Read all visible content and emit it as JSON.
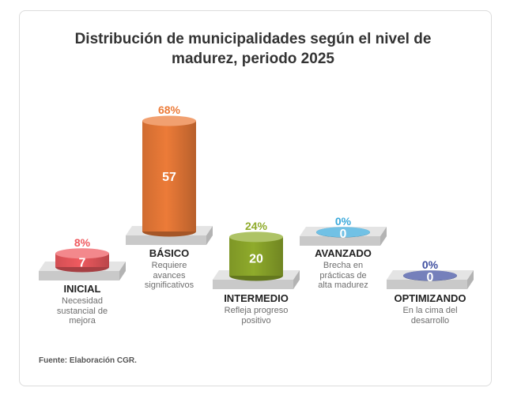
{
  "title_lines": [
    "Distribución de municipalidades según el nivel de",
    "madurez, periodo 2025"
  ],
  "source": "Fuente: Elaboración CGR.",
  "chart_data": {
    "type": "bar",
    "title": "Distribución de municipalidades según el nivel de madurez, periodo 2025",
    "categories": [
      "INICIAL",
      "BÁSICO",
      "INTERMEDIO",
      "AVANZADO",
      "OPTIMIZANDO"
    ],
    "values": [
      7,
      57,
      20,
      0,
      0
    ],
    "percent_labels": [
      "8%",
      "68%",
      "24%",
      "0%",
      "0%"
    ],
    "descriptions": [
      [
        "Necesidad",
        "sustancial de",
        "mejora"
      ],
      [
        "Requiere",
        "avances",
        "significativos"
      ],
      [
        "Refleja progreso",
        "positivo"
      ],
      [
        "Brecha en",
        "prácticas de",
        "alta madurez"
      ],
      [
        "En la cima del",
        "desarrollo"
      ]
    ],
    "colors": [
      "#ef5a5f",
      "#ec7b38",
      "#8fab2b",
      "#3aa9db",
      "#3f4fa0"
    ],
    "xlabel": "",
    "ylabel": "",
    "grid": false,
    "legend": "none"
  }
}
